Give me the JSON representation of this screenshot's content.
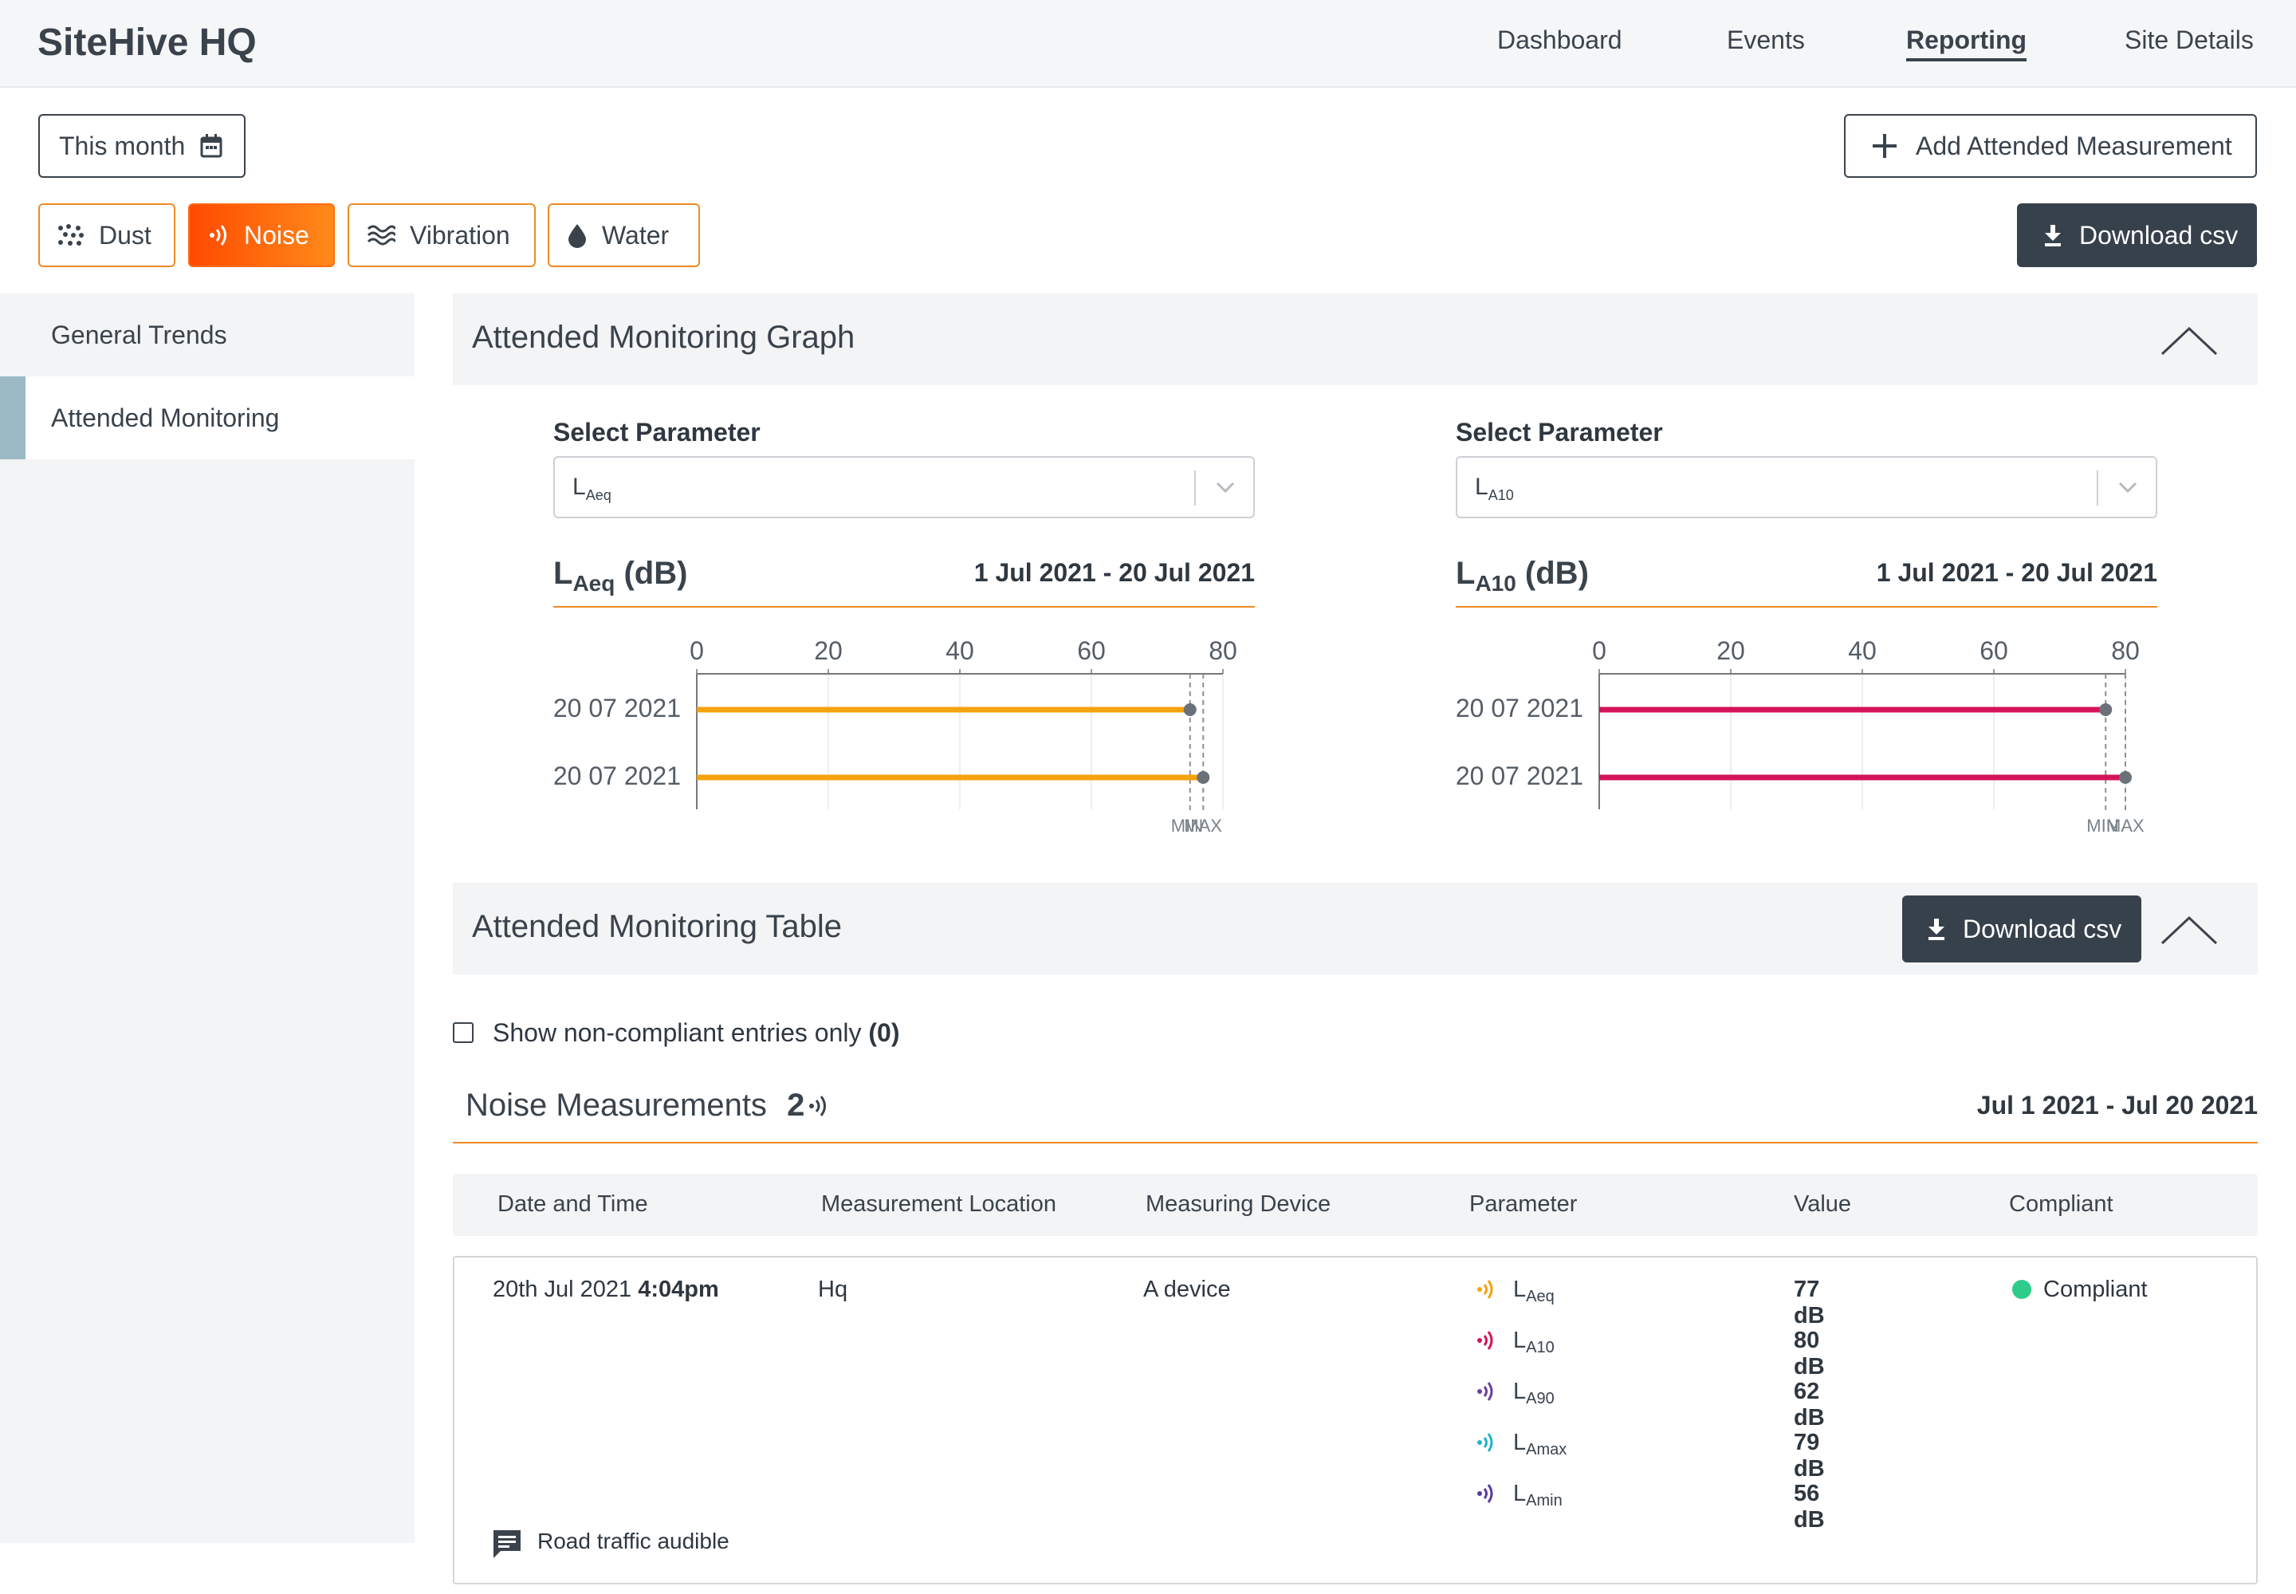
{
  "app": {
    "title": "SiteHive HQ"
  },
  "nav": [
    "Dashboard",
    "Events",
    "Reporting",
    "Site Details"
  ],
  "date_filter": {
    "label": "This month"
  },
  "add_button": {
    "label": "Add Attended Measurement"
  },
  "chips": [
    "Dust",
    "Noise",
    "Vibration",
    "Water"
  ],
  "download_csv_label": "Download csv",
  "sidebar": {
    "items": [
      "General Trends",
      "Attended Monitoring"
    ]
  },
  "graph_panel": {
    "title": "Attended Monitoring Graph"
  },
  "graphs": [
    {
      "select_label": "Select Parameter",
      "param_main": "L",
      "param_sub": "Aeq",
      "title_main": "L",
      "title_sub": "Aeq",
      "title_unit": " (dB)",
      "range": "1 Jul 2021 - 20 Jul 2021",
      "color": "#f5a20c"
    },
    {
      "select_label": "Select Parameter",
      "param_main": "L",
      "param_sub": "A10",
      "title_main": "L",
      "title_sub": "A10",
      "title_unit": " (dB)",
      "range": "1 Jul 2021 - 20 Jul 2021",
      "color": "#d4145a"
    }
  ],
  "chart_data": [
    {
      "type": "bar",
      "orientation": "horizontal",
      "categories": [
        "20 07 2021",
        "20 07 2021"
      ],
      "values": [
        75,
        77
      ],
      "xlim": [
        0,
        80
      ],
      "xticks": [
        0,
        20,
        40,
        60,
        80
      ],
      "reference_lines": [
        {
          "label": "MIN",
          "value": 75
        },
        {
          "label": "MAX",
          "value": 77
        }
      ],
      "color": "#f5a20c"
    },
    {
      "type": "bar",
      "orientation": "horizontal",
      "categories": [
        "20 07 2021",
        "20 07 2021"
      ],
      "values": [
        77,
        80
      ],
      "xlim": [
        0,
        80
      ],
      "xticks": [
        0,
        20,
        40,
        60,
        80
      ],
      "reference_lines": [
        {
          "label": "MIN",
          "value": 77
        },
        {
          "label": "MAX",
          "value": 80
        }
      ],
      "color": "#d4145a"
    }
  ],
  "table_panel": {
    "title": "Attended Monitoring Table"
  },
  "filter": {
    "label": "Show non-compliant entries only",
    "count": "(0)"
  },
  "measurements": {
    "title": "Noise Measurements",
    "count": "2",
    "range": "Jul 1 2021 - Jul 20 2021"
  },
  "table": {
    "headers": [
      "Date and Time",
      "Measurement Location",
      "Measuring Device",
      "Parameter",
      "Value",
      "Compliant"
    ],
    "row": {
      "date": "20th Jul 2021",
      "time": "4:04pm",
      "location": "Hq",
      "device": "A device",
      "status": "Compliant",
      "status_color": "#2ecc8a",
      "note": "Road traffic audible",
      "params": [
        {
          "main": "L",
          "sub": "Aeq",
          "value": "77 dB",
          "color": "#f5a20c"
        },
        {
          "main": "L",
          "sub": "A10",
          "value": "80 dB",
          "color": "#d4145a"
        },
        {
          "main": "L",
          "sub": "A90",
          "value": "62 dB",
          "color": "#6b3fa0"
        },
        {
          "main": "L",
          "sub": "Amax",
          "value": "79 dB",
          "color": "#1fb5c9"
        },
        {
          "main": "L",
          "sub": "Amin",
          "value": "56 dB",
          "color": "#5a3aa6"
        }
      ]
    }
  }
}
